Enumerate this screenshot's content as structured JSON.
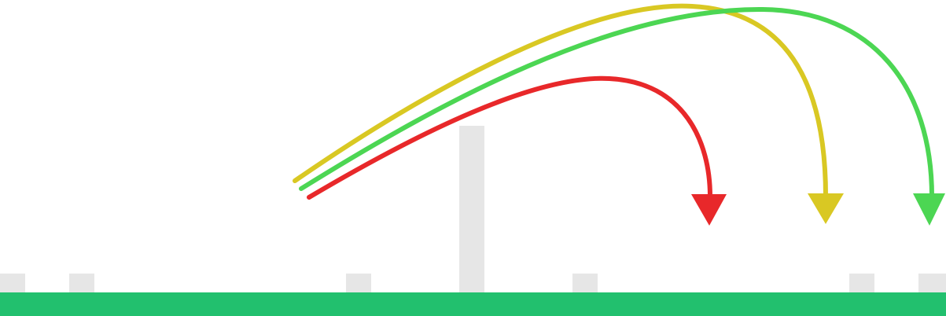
{
  "colors": {
    "background": "#ffffff",
    "ground": "#22c06e",
    "post": "#e6e6e6"
  },
  "trajectories": [
    {
      "name": "red-arc",
      "color": "#e8282a"
    },
    {
      "name": "yellow-arc",
      "color": "#d9c823"
    },
    {
      "name": "green-arc",
      "color": "#4cd653"
    }
  ],
  "obstacles": {
    "short_posts": 6,
    "tall_posts": 1
  }
}
